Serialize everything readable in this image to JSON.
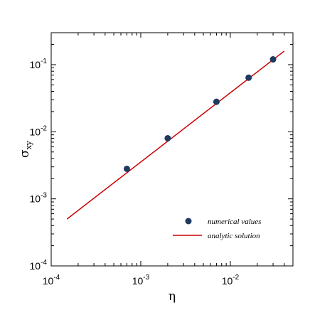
{
  "chart_data": {
    "type": "scatter",
    "x_scale": "log",
    "y_scale": "log",
    "xlim": [
      0.0001,
      0.05
    ],
    "ylim": [
      0.0001,
      0.3
    ],
    "x_ticks": [
      0.0001,
      0.001,
      0.01
    ],
    "x_tick_labels": [
      "10^-4",
      "10^-3",
      "10^-2"
    ],
    "y_ticks": [
      0.0001,
      0.001,
      0.01,
      0.1
    ],
    "y_tick_labels": [
      "10^-4",
      "10^-3",
      "10^-2",
      "10^-1"
    ],
    "xlabel": "η",
    "ylabel": "σxy",
    "grid": false,
    "legend_position": "bottom-right",
    "series": [
      {
        "name": "numerical values",
        "kind": "points",
        "color": "#1f3a5f",
        "x": [
          0.0007,
          0.002,
          0.007,
          0.016,
          0.03
        ],
        "y": [
          0.0028,
          0.008,
          0.028,
          0.064,
          0.12
        ]
      },
      {
        "name": "analytic solution",
        "kind": "line",
        "color": "#cc0000",
        "x": [
          0.00015,
          0.04
        ],
        "y": [
          0.0005,
          0.16
        ]
      }
    ]
  }
}
